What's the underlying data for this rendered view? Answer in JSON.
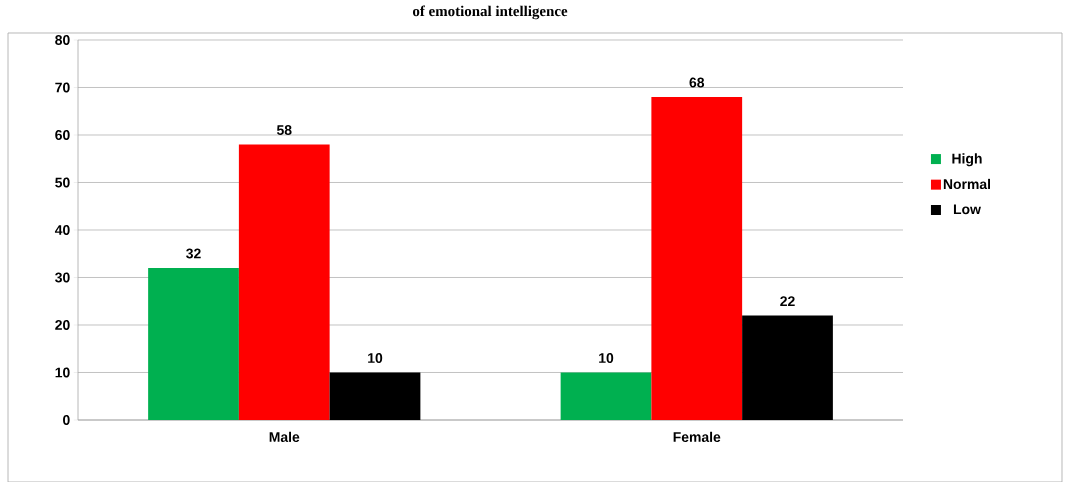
{
  "chart_data": {
    "type": "bar",
    "title": "of emotional intelligence",
    "categories": [
      "Male",
      "Female"
    ],
    "series": [
      {
        "name": "High",
        "color": "#00b050",
        "values": [
          32,
          10
        ]
      },
      {
        "name": "Normal",
        "color": "#ff0000",
        "values": [
          58,
          68
        ]
      },
      {
        "name": "Low",
        "color": "#000000",
        "values": [
          10,
          22
        ]
      }
    ],
    "ylim": [
      0,
      80
    ],
    "yticks": [
      0,
      10,
      20,
      30,
      40,
      50,
      60,
      70,
      80
    ],
    "grid": "y",
    "legend": "right",
    "data_labels": true
  }
}
